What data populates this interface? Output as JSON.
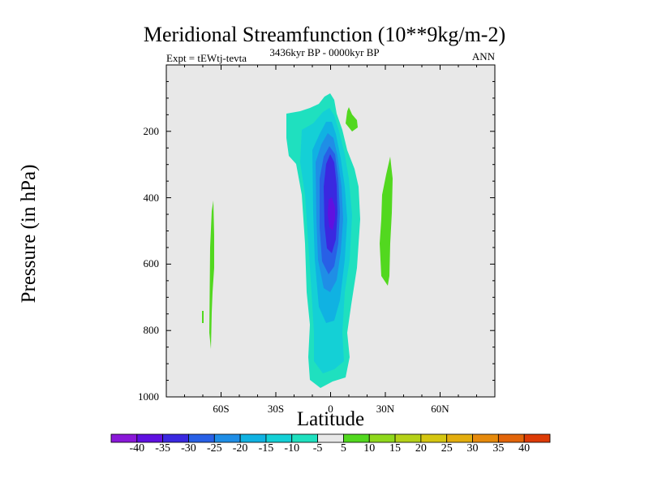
{
  "chart_data": {
    "type": "heatmap",
    "title": "Meridional Streamfunction (10**9kg/m-2)",
    "left_subtitle": "Expt = tEWtj-tevta",
    "center_subtitle": "3436kyr BP - 0000kyr BP",
    "right_subtitle": "ANN",
    "xlabel": "Latitude",
    "ylabel": "Pressure (in hPa)",
    "xlim": [
      -90,
      90
    ],
    "ylim": [
      1000,
      0
    ],
    "x_ticks": [
      -60,
      -30,
      0,
      30,
      60
    ],
    "x_tick_labels": [
      "60S",
      "30S",
      "0",
      "30N",
      "60N"
    ],
    "y_ticks": [
      200,
      400,
      600,
      800,
      1000
    ],
    "y_tick_labels": [
      "200",
      "400",
      "600",
      "800",
      "1000"
    ],
    "colorbar": {
      "levels": [
        -40,
        -35,
        -30,
        -25,
        -20,
        -15,
        -10,
        -5,
        5,
        10,
        15,
        20,
        25,
        30,
        35,
        40
      ],
      "labels": [
        "-40",
        "-35",
        "-30",
        "-25",
        "-20",
        "-15",
        "-10",
        "-5",
        "5",
        "10",
        "15",
        "20",
        "25",
        "30",
        "35",
        "40"
      ],
      "colors": [
        "#8a18d8",
        "#5f10e0",
        "#3a28e0",
        "#2860e6",
        "#1f8ee6",
        "#10b2e2",
        "#14d0d6",
        "#1fe0bf",
        "#e8e8e8",
        "#52d81f",
        "#8fd81c",
        "#b5d118",
        "#d5c611",
        "#e3ad0e",
        "#e68a0c",
        "#e2650a",
        "#dd3b06"
      ]
    },
    "features": [
      {
        "name": "negative-cell",
        "lat_range": [
          -7,
          10
        ],
        "p_range": [
          85,
          975
        ],
        "min_value": -35,
        "center_lat": 0,
        "center_p": 450
      },
      {
        "name": "positive-band-30N",
        "lat_range": [
          25,
          30
        ],
        "p_range": [
          280,
          650
        ],
        "value": 5
      },
      {
        "name": "positive-band-60S",
        "lat_range": [
          -65,
          -62
        ],
        "p_range": [
          410,
          850
        ],
        "value": 5
      },
      {
        "name": "positive-patch-18N",
        "lat_range": [
          8,
          14
        ],
        "p_range": [
          125,
          200
        ],
        "value": 5
      }
    ]
  }
}
